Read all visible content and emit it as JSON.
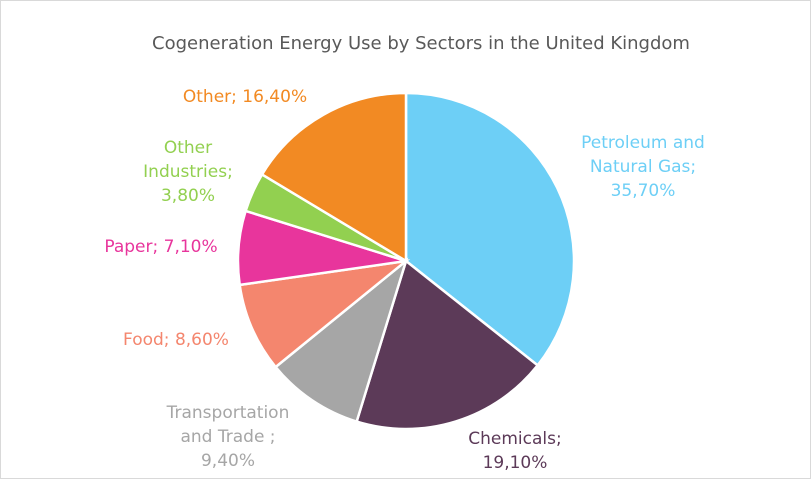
{
  "chart_data": {
    "type": "pie",
    "title": "Cogeneration Energy Use by Sectors in the United Kingdom",
    "slices": [
      {
        "label_lines": [
          "Petroleum and",
          "Natural Gas;",
          "35,70%"
        ],
        "category": "Petroleum and Natural Gas",
        "value": 35.7,
        "color": "#6dcff6"
      },
      {
        "label_lines": [
          "Chemicals;",
          "19,10%"
        ],
        "category": "Chemicals",
        "value": 19.1,
        "color": "#5c3a58"
      },
      {
        "label_lines": [
          "Transportation",
          "and Trade ;",
          "9,40%"
        ],
        "category": "Transportation and Trade",
        "value": 9.4,
        "color": "#a6a6a6"
      },
      {
        "label_lines": [
          "Food; 8,60%"
        ],
        "category": "Food",
        "value": 8.6,
        "color": "#f4866e"
      },
      {
        "label_lines": [
          "Paper; 7,10%"
        ],
        "category": "Paper",
        "value": 7.1,
        "color": "#e8359c"
      },
      {
        "label_lines": [
          "Other",
          "Industries;",
          "3,80%"
        ],
        "category": "Other Industries",
        "value": 3.8,
        "color": "#92d050"
      },
      {
        "label_lines": [
          "Other; 16,40%"
        ],
        "category": "Other",
        "value": 16.4,
        "color": "#f28a23"
      }
    ],
    "legend": "none",
    "data_labels": "outside"
  }
}
